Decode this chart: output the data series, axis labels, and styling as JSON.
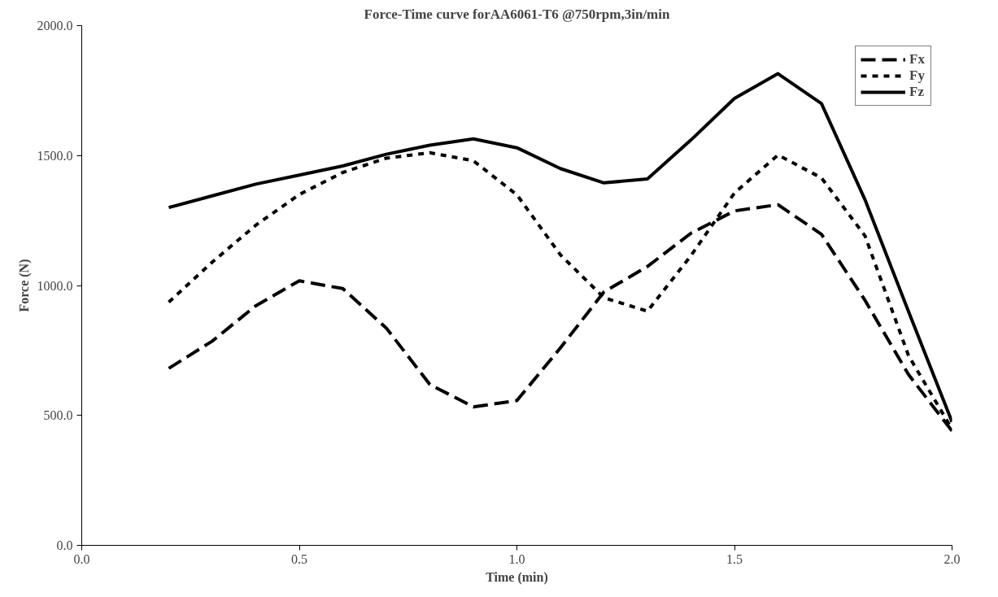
{
  "chart_data": {
    "type": "line",
    "title": "Force-Time curve forAA6061-T6 @750rpm,3in/min",
    "xlabel": "Time (min)",
    "ylabel": "Force (N)",
    "x": [
      0.2,
      0.3,
      0.4,
      0.5,
      0.6,
      0.7,
      0.8,
      0.9,
      1.0,
      1.1,
      1.2,
      1.3,
      1.4,
      1.5,
      1.6,
      1.7,
      1.8,
      1.9,
      2.0
    ],
    "series": [
      {
        "name": "Fx",
        "color": "#000000",
        "line_style": "dashed",
        "values": [
          681,
          786,
          922,
          1018,
          988,
          836,
          619,
          533,
          557,
          760,
          975,
          1073,
          1201,
          1287,
          1311,
          1197,
          943,
          657,
          440
        ]
      },
      {
        "name": "Fy",
        "color": "#000000",
        "line_style": "dotted",
        "values": [
          936,
          1090,
          1232,
          1350,
          1435,
          1490,
          1511,
          1480,
          1349,
          1118,
          953,
          901,
          1115,
          1356,
          1502,
          1414,
          1191,
          730,
          447
        ]
      },
      {
        "name": "Fz",
        "color": "#000000",
        "line_style": "solid",
        "values": [
          1300,
          1345,
          1390,
          1425,
          1460,
          1505,
          1540,
          1564,
          1530,
          1450,
          1395,
          1410,
          1560,
          1720,
          1815,
          1700,
          1330,
          900,
          475
        ]
      }
    ],
    "xlim": [
      0,
      2
    ],
    "ylim": [
      0,
      2000
    ],
    "xticks": [
      {
        "value": 0,
        "label": "0.0"
      },
      {
        "value": 0.5,
        "label": "0.5"
      },
      {
        "value": 1,
        "label": "1.0"
      },
      {
        "value": 1.5,
        "label": "1.5"
      },
      {
        "value": 2,
        "label": "2.0"
      }
    ],
    "yticks": [
      {
        "value": 0,
        "label": "0.0"
      },
      {
        "value": 500,
        "label": "500.0"
      },
      {
        "value": 1000,
        "label": "1000.0"
      },
      {
        "value": 1500,
        "label": "1500.0"
      },
      {
        "value": 2000,
        "label": "2000.0"
      }
    ],
    "legend": "top right",
    "grid": false
  }
}
